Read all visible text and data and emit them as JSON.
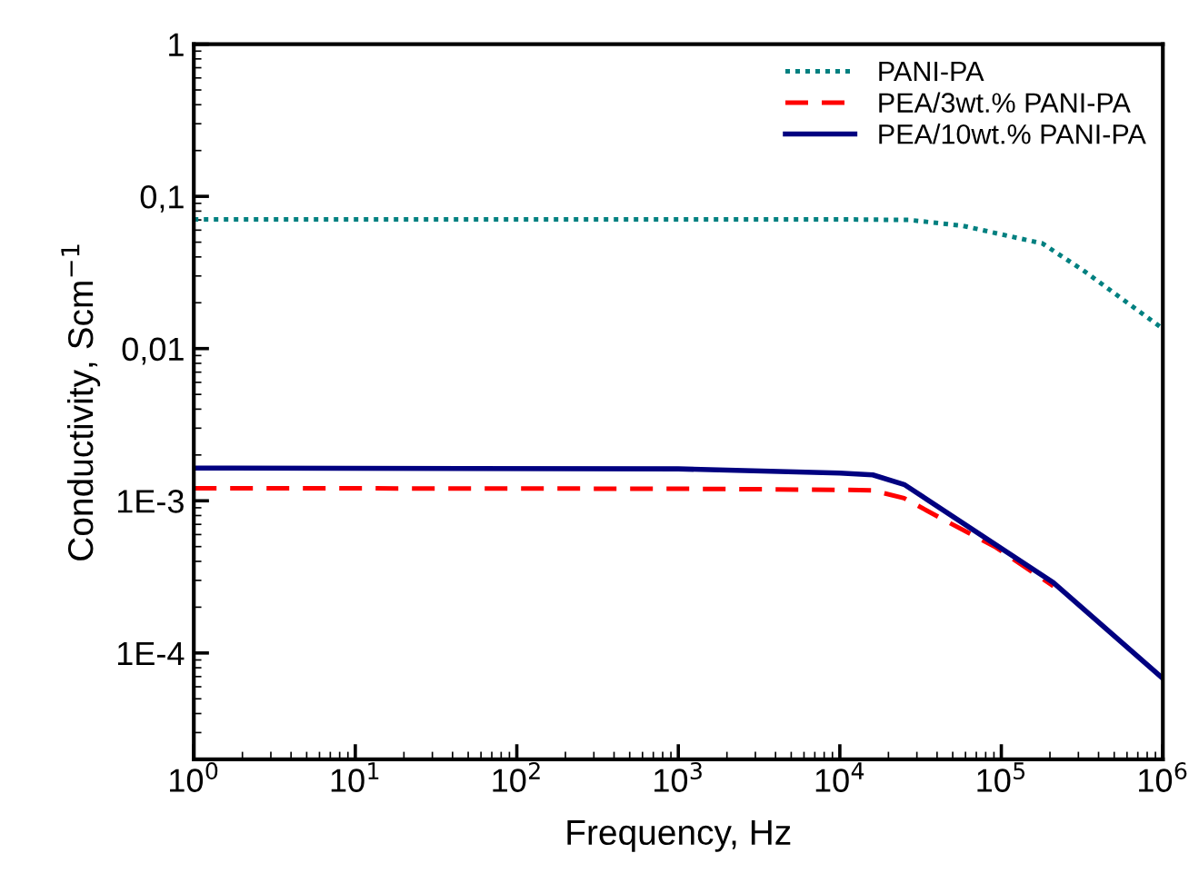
{
  "chart_data": {
    "type": "line",
    "xlabel": "Frequency, Hz",
    "ylabel": "Conductivity, Scm$^{−1}$",
    "log": "xy",
    "xlim": [
      1,
      1000000
    ],
    "xticks": [
      {
        "value": 1,
        "label": "10$^{0}$"
      },
      {
        "value": 10,
        "label": "10$^{1}$"
      },
      {
        "value": 100,
        "label": "10$^{2}$"
      },
      {
        "value": 1000,
        "label": "10$^{3}$"
      },
      {
        "value": 10000,
        "label": "10$^{4}$"
      },
      {
        "value": 100000,
        "label": "10$^{5}$"
      },
      {
        "value": 1000000,
        "label": "10$^{6}$"
      }
    ],
    "ylim": [
      2e-05,
      1
    ],
    "yticks": [
      {
        "value": 0.0001,
        "label": "1E-4"
      },
      {
        "value": 0.001,
        "label": "1E-3"
      },
      {
        "value": 0.01,
        "label": "0,01"
      },
      {
        "value": 0.1,
        "label": "0,1"
      },
      {
        "value": 1,
        "label": "1"
      }
    ],
    "legend": "top right",
    "grid": false,
    "series": [
      {
        "name": "PANI-PA",
        "color": "#008080",
        "line_style": "dotted",
        "x": [
          1,
          1000,
          10000,
          27000,
          58000,
          180000,
          330000,
          1000000
        ],
        "values": [
          0.0706,
          0.0706,
          0.0706,
          0.07,
          0.064,
          0.049,
          0.032,
          0.0135
        ]
      },
      {
        "name": "PEA/3wt.% PANI-PA",
        "color": "#ff0000",
        "line_style": "dashed",
        "x": [
          1,
          1000,
          10000,
          16000,
          25000,
          45000,
          91000,
          210000
        ],
        "values": [
          0.00121,
          0.0012,
          0.00118,
          0.00117,
          0.00104,
          0.00074,
          0.0005,
          0.000275
        ]
      },
      {
        "name": "PEA/10wt.% PANI-PA",
        "color": "#000080",
        "line_style": "solid",
        "x": [
          1,
          1000,
          10000,
          16000,
          25000,
          210000,
          1000000
        ],
        "values": [
          0.00164,
          0.00162,
          0.00152,
          0.00148,
          0.00128,
          0.00029,
          6.8e-05
        ]
      }
    ]
  }
}
